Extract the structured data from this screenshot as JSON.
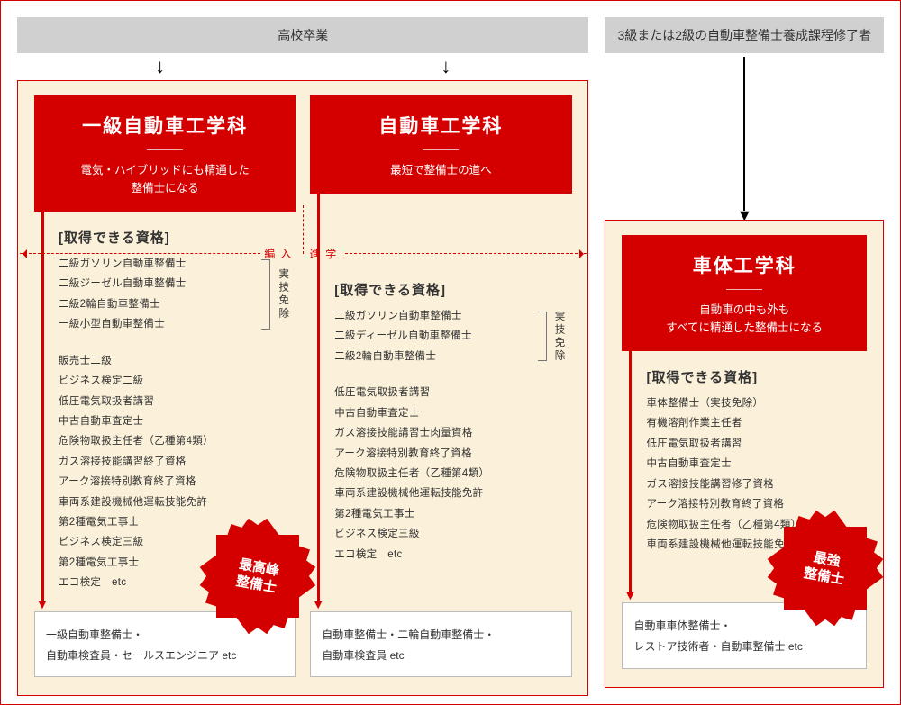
{
  "colors": {
    "accent": "#d40000",
    "panel_bg": "#fbf0d9",
    "entry_bg": "#d0d0d0",
    "outcome_bg": "#ffffff"
  },
  "entry_left": "高校卒業",
  "entry_right": "3級または2級の自動車整備士養成課程修了者",
  "panel_a": {
    "title": "一級自動車工学科",
    "subtitle": "電気・ハイブリッドにも精通した\n整備士になる",
    "section": "[取得できる資格]",
    "bracket_label": "実技免除",
    "q_exempt": [
      "二級ガソリン自動車整備士",
      "二級ジーゼル自動車整備士",
      "二級2輪自動車整備士",
      "一級小型自動車整備士"
    ],
    "q_other": [
      "販売士二級",
      "ビジネス検定二級",
      "低圧電気取扱者講習",
      "中古自動車査定士",
      "危険物取扱主任者（乙種第4類）",
      "ガス溶接技能講習終了資格",
      "アーク溶接特別教育終了資格",
      "車両系建設機械他運転技能免許",
      "第2種電気工事士",
      "ビジネス検定三級",
      "第2種電気工事士",
      "エコ検定　etc"
    ],
    "burst": "最高峰\n整備士",
    "outcome": "一級自動車整備士・\n自動車検査員・セールスエンジニア etc"
  },
  "panel_b": {
    "title": "自動車工学科",
    "subtitle": "最短で整備士の道へ",
    "section": "[取得できる資格]",
    "bracket_label": "実技免除",
    "q_exempt": [
      "二級ガソリン自動車整備士",
      "二級ディーゼル自動車整備士",
      "二級2輪自動車整備士"
    ],
    "q_other": [
      "低圧電気取扱者講習",
      "中古自動車査定士",
      "ガス溶接技能講習士肉量資格",
      "アーク溶接特別教育終了資格",
      "危険物取扱主任者（乙種第4類）",
      "車両系建設機械他運転技能免許",
      "第2種電気工事士",
      "ビジネス検定三級",
      "エコ検定　etc"
    ],
    "outcome": "自動車整備士・二輪自動車整備士・\n自動車検査員 etc"
  },
  "transfer": {
    "left": "編入",
    "right": "進学"
  },
  "panel_c": {
    "title": "車体工学科",
    "subtitle": "自動車の中も外も\nすべてに精通した整備士になる",
    "section": "[取得できる資格]",
    "q": [
      "車体整備士（実技免除）",
      "有機溶剤作業主任者",
      "低圧電気取扱者講習",
      "中古自動車査定士",
      "ガス溶接技能講習修了資格",
      "アーク溶接特別教育終了資格",
      "危険物取扱主任者（乙種第4類）",
      "車両系建設機械他運転技能免許　etc"
    ],
    "burst": "最強\n整備士",
    "outcome": "自動車車体整備士・\nレストア技術者・自動車整備士 etc"
  }
}
